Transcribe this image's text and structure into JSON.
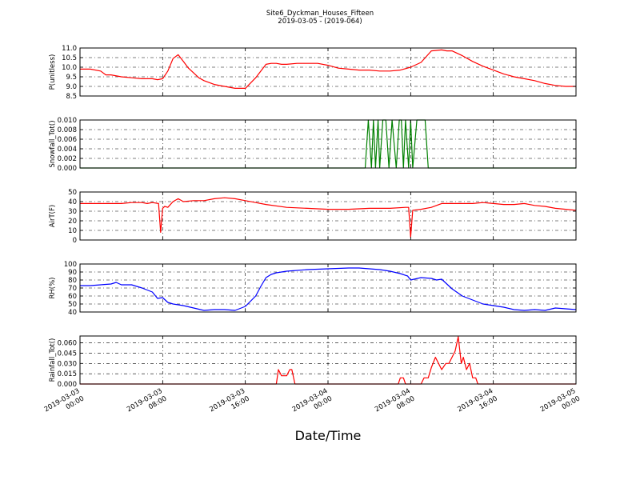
{
  "figure": {
    "title_line1": "Site6_Dyckman_Houses_Fifteen",
    "title_line2": "2019-03-05 - (2019-064)",
    "xlabel": "Date/Time"
  },
  "chart_data": [
    {
      "type": "line",
      "ylabel": "P(unitless)",
      "ylim": [
        8.5,
        11.0
      ],
      "yticks": [
        8.5,
        9.0,
        9.5,
        10.0,
        10.5,
        11.0
      ],
      "ytick_labels": [
        "8.5",
        "9.0",
        "9.5",
        "10.0",
        "10.5",
        "11.0"
      ],
      "color": "#ff0000",
      "x": [
        0,
        1,
        2,
        2.5,
        3,
        4,
        5,
        6,
        7,
        7.5,
        8,
        8.5,
        9,
        9.5,
        10,
        10.5,
        11,
        11.5,
        12,
        13,
        14,
        15,
        16,
        17,
        18,
        18.5,
        19,
        19.5,
        20,
        21,
        22,
        23,
        24,
        25,
        26,
        27,
        28,
        29,
        30,
        31,
        32,
        33,
        34,
        35,
        35.5,
        36,
        37,
        38,
        39,
        40,
        41,
        42,
        43,
        44,
        45,
        46,
        47,
        48
      ],
      "y": [
        9.9,
        9.9,
        9.8,
        9.6,
        9.6,
        9.5,
        9.45,
        9.4,
        9.4,
        9.35,
        9.4,
        9.8,
        10.45,
        10.65,
        10.3,
        9.95,
        9.7,
        9.45,
        9.3,
        9.1,
        9.0,
        8.9,
        8.9,
        9.45,
        10.15,
        10.2,
        10.2,
        10.15,
        10.15,
        10.2,
        10.2,
        10.2,
        10.1,
        9.95,
        9.9,
        9.85,
        9.85,
        9.8,
        9.8,
        9.85,
        10.0,
        10.25,
        10.85,
        10.9,
        10.85,
        10.85,
        10.6,
        10.3,
        10.05,
        9.85,
        9.65,
        9.5,
        9.4,
        9.3,
        9.15,
        9.05,
        9.0,
        9.0
      ]
    },
    {
      "type": "line",
      "ylabel": "Snowfall_Tot()",
      "ylim": [
        0.0,
        0.01
      ],
      "yticks": [
        0.0,
        0.002,
        0.004,
        0.006,
        0.008,
        0.01
      ],
      "ytick_labels": [
        "0.000",
        "0.002",
        "0.004",
        "0.006",
        "0.008",
        "0.010"
      ],
      "color": "#008000",
      "x": [
        0,
        27.6,
        27.9,
        28.2,
        28.4,
        28.6,
        28.85,
        29.0,
        29.3,
        29.6,
        29.9,
        30.2,
        30.6,
        30.9,
        31.1,
        31.3,
        31.5,
        31.8,
        32.0,
        32.2,
        32.6,
        33.4,
        33.7,
        48
      ],
      "y": [
        0.0,
        0.0,
        0.01,
        0.0,
        0.01,
        0.0,
        0.01,
        0.0,
        0.01,
        0.01,
        0.0,
        0.01,
        0.0,
        0.01,
        0.01,
        0.0,
        0.01,
        0.0,
        0.01,
        0.0,
        0.01,
        0.01,
        0.0,
        0.0
      ]
    },
    {
      "type": "line",
      "ylabel": "AirT(F)",
      "ylim": [
        0,
        50
      ],
      "yticks": [
        0,
        10,
        20,
        30,
        40,
        50
      ],
      "ytick_labels": [
        "0",
        "10",
        "20",
        "30",
        "40",
        "50"
      ],
      "color": "#ff0000",
      "x": [
        0,
        2,
        4,
        5,
        6,
        6.5,
        7,
        7.6,
        7.8,
        8.0,
        8.2,
        8.5,
        9.0,
        9.5,
        10,
        11,
        12,
        13,
        14,
        15,
        16,
        17,
        18,
        20,
        22,
        24,
        26,
        28,
        30,
        31.5,
        31.8,
        32.0,
        32.2,
        33,
        34,
        35,
        36,
        37,
        38,
        39,
        40,
        41,
        42,
        43,
        44,
        45,
        46,
        47,
        48
      ],
      "y": [
        38,
        38,
        38,
        39,
        39,
        38,
        39,
        38,
        8,
        33,
        35,
        34,
        40,
        43,
        40,
        41,
        41,
        43,
        44,
        43,
        41,
        39,
        37,
        34,
        33,
        32,
        32,
        33,
        33,
        34,
        34,
        3,
        31,
        32,
        34,
        38,
        38,
        38,
        38,
        39,
        38,
        37,
        37,
        38,
        36,
        35,
        33,
        32,
        31
      ]
    },
    {
      "type": "line",
      "ylabel": "RH(%)",
      "ylim": [
        40,
        100
      ],
      "yticks": [
        40,
        50,
        60,
        70,
        80,
        90,
        100
      ],
      "ytick_labels": [
        "40",
        "50",
        "60",
        "70",
        "80",
        "90",
        "100"
      ],
      "color": "#0000ff",
      "x": [
        0,
        1,
        2,
        3,
        3.5,
        4,
        5,
        6,
        7,
        7.5,
        8,
        8.5,
        9,
        10,
        11,
        12,
        13,
        14,
        15,
        16,
        17,
        17.5,
        18,
        18.5,
        19,
        20,
        22,
        24,
        26,
        27,
        28,
        29,
        30,
        31,
        31.7,
        32,
        33,
        34,
        34.5,
        35,
        36,
        37,
        38,
        39,
        40,
        41,
        42,
        43,
        44,
        45,
        46,
        47,
        48
      ],
      "y": [
        73,
        73,
        74,
        75,
        77,
        74,
        74,
        70,
        65,
        57,
        58,
        52,
        50,
        48,
        45,
        42,
        43,
        43,
        42,
        47,
        60,
        72,
        83,
        87,
        89,
        91,
        93,
        94,
        95,
        95,
        94,
        93,
        91,
        88,
        85,
        80,
        83,
        82,
        80,
        81,
        69,
        60,
        55,
        50,
        48,
        46,
        43,
        42,
        43,
        42,
        45,
        44,
        43
      ]
    },
    {
      "type": "line",
      "ylabel": "Rainfall_Tot()",
      "ylim": [
        0.0,
        0.07
      ],
      "yticks": [
        0.0,
        0.015,
        0.03,
        0.045,
        0.06
      ],
      "ytick_labels": [
        "0.000",
        "0.015",
        "0.030",
        "0.045",
        "0.060"
      ],
      "color": "#ff0000",
      "x": [
        0,
        19.0,
        19.2,
        19.5,
        20.0,
        20.3,
        20.5,
        20.8,
        21.0,
        30.8,
        31.0,
        31.3,
        31.5,
        31.7,
        32.0,
        33.0,
        33.3,
        33.7,
        34.0,
        34.4,
        34.7,
        35.0,
        35.4,
        35.7,
        36.0,
        36.3,
        36.6,
        36.9,
        37.1,
        37.4,
        37.7,
        38.0,
        38.3,
        38.5,
        48
      ],
      "y": [
        0.0,
        0.0,
        0.021,
        0.012,
        0.012,
        0.021,
        0.021,
        0.0,
        0.0,
        0.0,
        0.009,
        0.009,
        0.0,
        0.0,
        0.0,
        0.0,
        0.009,
        0.009,
        0.024,
        0.039,
        0.03,
        0.021,
        0.03,
        0.03,
        0.039,
        0.048,
        0.069,
        0.03,
        0.039,
        0.021,
        0.03,
        0.009,
        0.009,
        0.0,
        0.0
      ]
    }
  ],
  "x_axis": {
    "range": [
      "2019-03-03 00:00",
      "2019-03-05 00:00"
    ],
    "x_units": "hours",
    "ticks": [
      0,
      8,
      16,
      24,
      32,
      40,
      48
    ],
    "tick_labels": [
      [
        "2019-03-03",
        "00:00"
      ],
      [
        "2019-03-03",
        "08:00"
      ],
      [
        "2019-03-03",
        "16:00"
      ],
      [
        "2019-03-04",
        "00:00"
      ],
      [
        "2019-03-04",
        "08:00"
      ],
      [
        "2019-03-04",
        "16:00"
      ],
      [
        "2019-03-05",
        "00:00"
      ]
    ],
    "grid": true
  }
}
